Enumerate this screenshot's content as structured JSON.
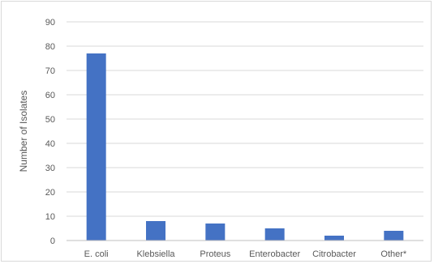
{
  "chart_data": {
    "type": "bar",
    "title": "",
    "xlabel": "",
    "ylabel": "Number of Isolates",
    "categories": [
      "E. coli",
      "Klebsiella",
      "Proteus",
      "Enterobacter",
      "Citrobacter",
      "Other*"
    ],
    "values": [
      77,
      8,
      7,
      5,
      2,
      4
    ],
    "ylim": [
      0,
      90
    ],
    "yticks": [
      0,
      10,
      20,
      30,
      40,
      50,
      60,
      70,
      80,
      90
    ],
    "grid": true,
    "legend": "none",
    "bar_color": "#4472c4",
    "grid_color": "#d9d9d9",
    "axis_color": "#bfbfbf",
    "text_color": "#595959"
  }
}
